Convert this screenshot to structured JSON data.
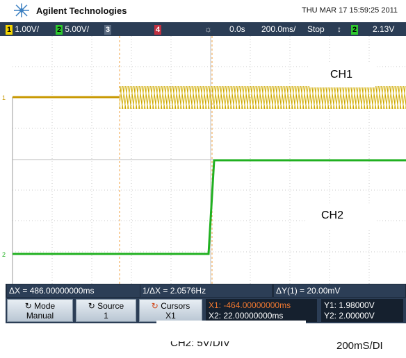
{
  "header": {
    "brand": "Agilent Technologies",
    "datetime": "THU MAR 17 15:59:25 2011"
  },
  "status": {
    "ch1_num": "1",
    "ch1_scale": "1.00V/",
    "ch2_num": "2",
    "ch2_scale": "5.00V/",
    "ch3_num": "3",
    "ch4_num": "4",
    "delay": "0.0s",
    "timebase": "200.0ms/",
    "run_state": "Stop",
    "trig_source": "2",
    "trig_level": "2.13V"
  },
  "trace_labels": {
    "ch1": "CH1",
    "ch2": "CH2"
  },
  "readout": {
    "delta_x": "ΔX = 486.00000000ms",
    "inv_delta_x": "1/ΔX = 2.0576Hz",
    "delta_y": "ΔY(1) = 20.00mV"
  },
  "softkeys": {
    "mode_title": "Mode",
    "mode_value": "Manual",
    "source_title": "Source",
    "source_value": "1",
    "cursors_title": "Cursors",
    "cursors_value": "X1",
    "x1": "X1: -464.00000000ms",
    "x2": "X2: 22.00000000ms",
    "y1": "Y1: 1.98000V",
    "y2": "Y2: 2.00000V"
  },
  "captions": {
    "ch2_scale": "CH2: 5V/DIV",
    "timebase": "200mS/DI"
  }
}
